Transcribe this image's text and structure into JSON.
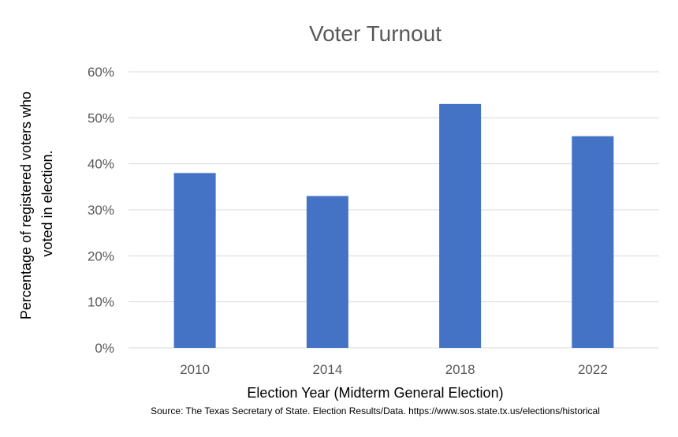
{
  "colors": {
    "bar": "#4472C4",
    "grid": "#D9D9D9",
    "text": "#595959"
  },
  "chart_data": {
    "type": "bar",
    "title": "Voter Turnout",
    "categories": [
      "2010",
      "2014",
      "2018",
      "2022"
    ],
    "values": [
      38,
      33,
      53,
      46
    ],
    "unit": "%",
    "xlabel": "Election Year (Midterm General Election)",
    "ylabel_lines": [
      "Percentage of registered voters who",
      "voted in election."
    ],
    "ylim": [
      0,
      60
    ],
    "yticks": [
      "0%",
      "10%",
      "20%",
      "30%",
      "40%",
      "50%",
      "60%"
    ],
    "ytick_values": [
      0,
      10,
      20,
      30,
      40,
      50,
      60
    ],
    "grid": true,
    "legend": false
  },
  "source": "Source: The Texas Secretary of State. Election Results/Data. https://www.sos.state.tx.us/elections/historical"
}
